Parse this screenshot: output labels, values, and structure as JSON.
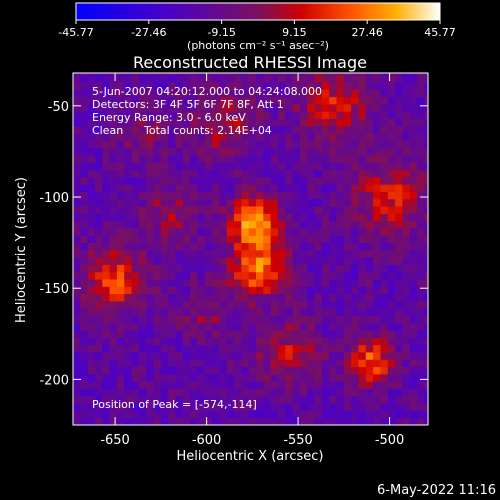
{
  "colorbar": {
    "tick_labels": [
      "-45.77",
      "-27.46",
      "-9.15",
      "9.15",
      "27.46",
      "45.77"
    ],
    "min": -45.77,
    "max": 45.77,
    "units": "(photons cm⁻² s⁻¹ asec⁻²)"
  },
  "chart_data": {
    "type": "heatmap",
    "title": "Reconstructed RHESSI Image",
    "xlabel": "Heliocentric X (arcsec)",
    "ylabel": "Heliocentric Y (arcsec)",
    "xlim": [
      -673,
      -479
    ],
    "ylim": [
      -225,
      -32
    ],
    "x_ticks": [
      -650,
      -600,
      -550,
      -500
    ],
    "y_ticks": [
      -50,
      -100,
      -150,
      -200
    ],
    "x_tick_labels": [
      "-650",
      "-600",
      "-550",
      "-500"
    ],
    "y_tick_labels": [
      "-50",
      "-100",
      "-150",
      "-200"
    ],
    "colormap": "blue-purple-red-yellow-white",
    "peak_position": [
      -574,
      -114
    ],
    "sources": [
      {
        "x": -574,
        "y": -114,
        "amp": 45.8,
        "sigma": 10
      },
      {
        "x": -572,
        "y": -140,
        "amp": 38,
        "sigma": 11
      },
      {
        "x": -650,
        "y": -145,
        "amp": 32,
        "sigma": 12
      },
      {
        "x": -510,
        "y": -190,
        "amp": 36,
        "sigma": 9
      },
      {
        "x": -530,
        "y": -50,
        "amp": 26,
        "sigma": 14
      },
      {
        "x": -590,
        "y": -60,
        "amp": 22,
        "sigma": 12
      },
      {
        "x": -500,
        "y": -100,
        "amp": 26,
        "sigma": 14
      },
      {
        "x": -555,
        "y": -185,
        "amp": 22,
        "sigma": 12
      },
      {
        "x": -620,
        "y": -110,
        "amp": 18,
        "sigma": 10
      },
      {
        "x": -635,
        "y": -65,
        "amp": 14,
        "sigma": 10
      },
      {
        "x": -600,
        "y": -165,
        "amp": 14,
        "sigma": 10
      }
    ],
    "annotations": {
      "time": "5-Jun-2007 04:20:12.000 to 04:24:08.000",
      "detectors": "Detectors: 3F 4F 5F 6F 7F 8F, Att 1",
      "energy": "Energy Range: 3.0 - 6.0 keV",
      "algorithm": "Clean",
      "counts": "Total counts: 2.14E+04",
      "peak": "Position of Peak = [-574,-114]"
    }
  },
  "footer": {
    "date": "6-May-2022 11:16"
  }
}
